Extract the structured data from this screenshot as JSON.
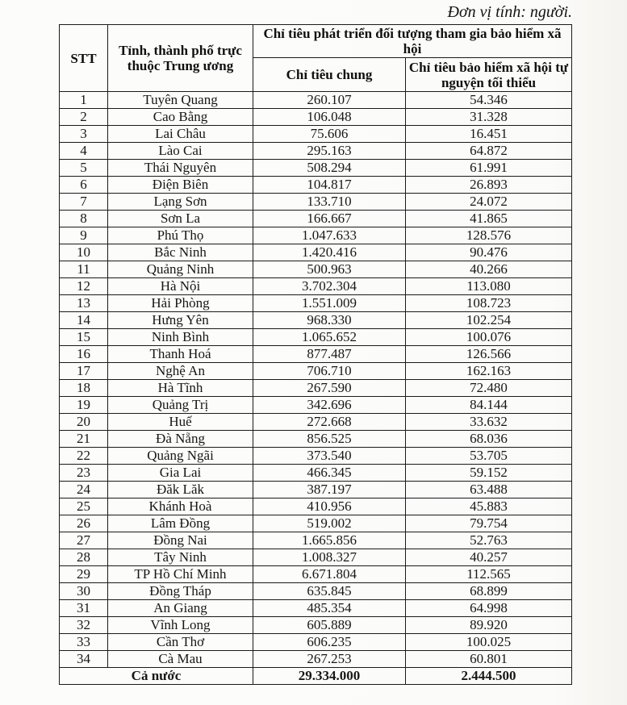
{
  "unit_note": "Đơn vị tính: người.",
  "colors": {
    "ink": "#171717",
    "border": "#1a1a1a",
    "paper": "#fbfbf9"
  },
  "table": {
    "header": {
      "stt": "STT",
      "province": "Tỉnh, thành phố trực thuộc Trung ương",
      "group": "Chỉ tiêu phát triển đối tượng tham gia bảo hiểm xã hội",
      "col_general": "Chỉ tiêu chung",
      "col_voluntary": "Chỉ tiêu bảo hiểm xã hội tự nguyện tối thiểu"
    },
    "rows": [
      {
        "stt": "1",
        "province": "Tuyên Quang",
        "general": "260.107",
        "voluntary": "54.346"
      },
      {
        "stt": "2",
        "province": "Cao Bằng",
        "general": "106.048",
        "voluntary": "31.328"
      },
      {
        "stt": "3",
        "province": "Lai Châu",
        "general": "75.606",
        "voluntary": "16.451"
      },
      {
        "stt": "4",
        "province": "Lào Cai",
        "general": "295.163",
        "voluntary": "64.872"
      },
      {
        "stt": "5",
        "province": "Thái Nguyên",
        "general": "508.294",
        "voluntary": "61.991"
      },
      {
        "stt": "6",
        "province": "Điện Biên",
        "general": "104.817",
        "voluntary": "26.893"
      },
      {
        "stt": "7",
        "province": "Lạng Sơn",
        "general": "133.710",
        "voluntary": "24.072"
      },
      {
        "stt": "8",
        "province": "Sơn La",
        "general": "166.667",
        "voluntary": "41.865"
      },
      {
        "stt": "9",
        "province": "Phú Thọ",
        "general": "1.047.633",
        "voluntary": "128.576"
      },
      {
        "stt": "10",
        "province": "Bắc Ninh",
        "general": "1.420.416",
        "voluntary": "90.476"
      },
      {
        "stt": "11",
        "province": "Quảng Ninh",
        "general": "500.963",
        "voluntary": "40.266"
      },
      {
        "stt": "12",
        "province": "Hà Nội",
        "general": "3.702.304",
        "voluntary": "113.080"
      },
      {
        "stt": "13",
        "province": "Hải Phòng",
        "general": "1.551.009",
        "voluntary": "108.723"
      },
      {
        "stt": "14",
        "province": "Hưng Yên",
        "general": "968.330",
        "voluntary": "102.254"
      },
      {
        "stt": "15",
        "province": "Ninh Bình",
        "general": "1.065.652",
        "voluntary": "100.076"
      },
      {
        "stt": "16",
        "province": "Thanh Hoá",
        "general": "877.487",
        "voluntary": "126.566"
      },
      {
        "stt": "17",
        "province": "Nghệ An",
        "general": "706.710",
        "voluntary": "162.163"
      },
      {
        "stt": "18",
        "province": "Hà Tĩnh",
        "general": "267.590",
        "voluntary": "72.480"
      },
      {
        "stt": "19",
        "province": "Quảng Trị",
        "general": "342.696",
        "voluntary": "84.144"
      },
      {
        "stt": "20",
        "province": "Huế",
        "general": "272.668",
        "voluntary": "33.632"
      },
      {
        "stt": "21",
        "province": "Đà Nẵng",
        "general": "856.525",
        "voluntary": "68.036"
      },
      {
        "stt": "22",
        "province": "Quảng Ngãi",
        "general": "373.540",
        "voluntary": "53.705"
      },
      {
        "stt": "23",
        "province": "Gia Lai",
        "general": "466.345",
        "voluntary": "59.152"
      },
      {
        "stt": "24",
        "province": "Đăk Lăk",
        "general": "387.197",
        "voluntary": "63.488"
      },
      {
        "stt": "25",
        "province": "Khánh Hoà",
        "general": "410.956",
        "voluntary": "45.883"
      },
      {
        "stt": "26",
        "province": "Lâm Đồng",
        "general": "519.002",
        "voluntary": "79.754"
      },
      {
        "stt": "27",
        "province": "Đồng Nai",
        "general": "1.665.856",
        "voluntary": "52.763"
      },
      {
        "stt": "28",
        "province": "Tây Ninh",
        "general": "1.008.327",
        "voluntary": "40.257"
      },
      {
        "stt": "29",
        "province": "TP Hồ Chí Minh",
        "general": "6.671.804",
        "voluntary": "112.565"
      },
      {
        "stt": "30",
        "province": "Đồng Tháp",
        "general": "635.845",
        "voluntary": "68.899"
      },
      {
        "stt": "31",
        "province": "An Giang",
        "general": "485.354",
        "voluntary": "64.998"
      },
      {
        "stt": "32",
        "province": "Vĩnh Long",
        "general": "605.889",
        "voluntary": "89.920"
      },
      {
        "stt": "33",
        "province": "Cần Thơ",
        "general": "606.235",
        "voluntary": "100.025"
      },
      {
        "stt": "34",
        "province": "Cà Mau",
        "general": "267.253",
        "voluntary": "60.801"
      }
    ],
    "total": {
      "label": "Cả nước",
      "general": "29.334.000",
      "voluntary": "2.444.500"
    }
  }
}
